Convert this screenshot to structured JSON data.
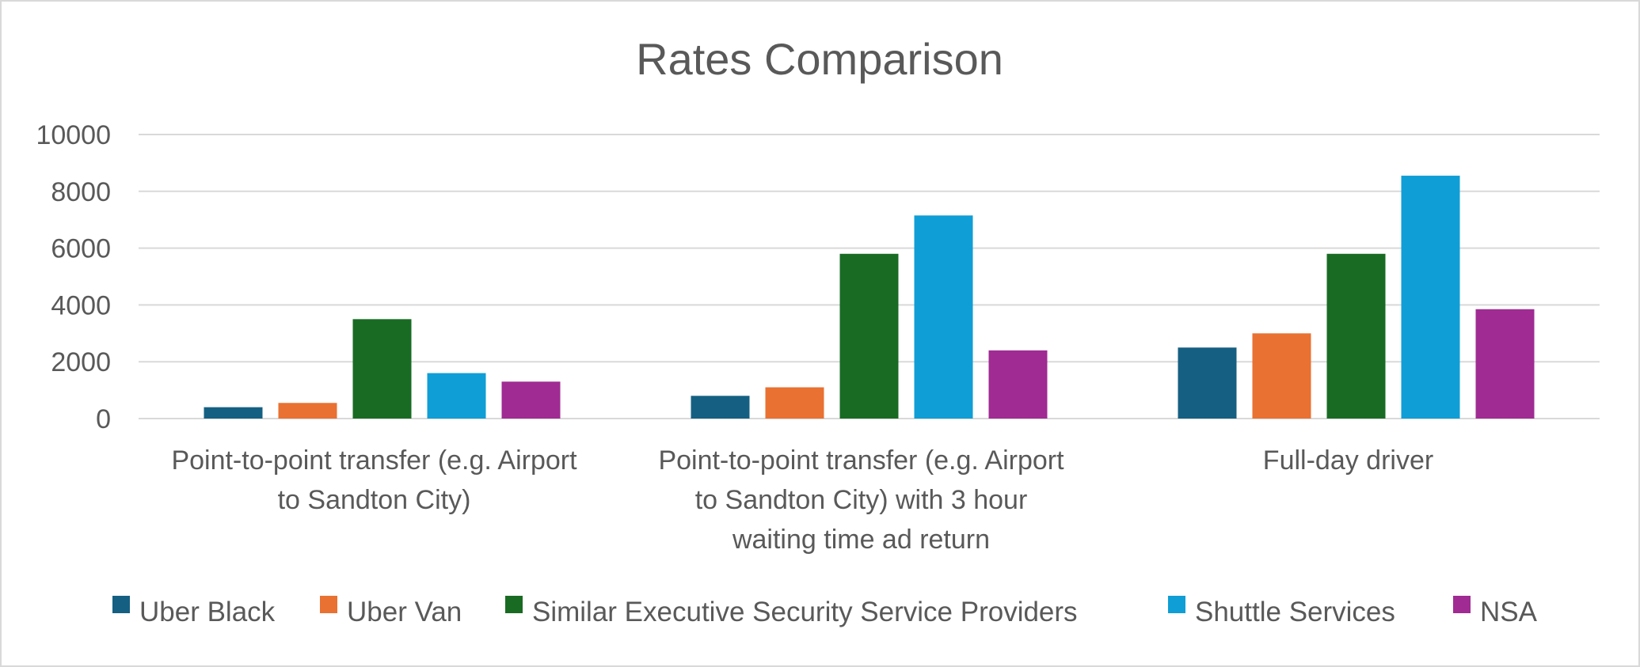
{
  "chart_data": {
    "type": "bar",
    "title": "Rates Comparison",
    "xlabel": "",
    "ylabel": "",
    "ylim": [
      0,
      10000
    ],
    "yticks": [
      0,
      2000,
      4000,
      6000,
      8000,
      10000
    ],
    "grid": true,
    "legend_position": "bottom",
    "categories": [
      [
        "Point-to-point transfer (e.g. Airport",
        "to Sandton City)"
      ],
      [
        "Point-to-point transfer (e.g. Airport",
        "to Sandton City) with 3 hour",
        "waiting time ad return"
      ],
      [
        "Full-day driver"
      ]
    ],
    "series": [
      {
        "name": "Uber Black",
        "color": "#156082",
        "values": [
          400,
          800,
          2500
        ]
      },
      {
        "name": "Uber Van",
        "color": "#E97132",
        "values": [
          550,
          1100,
          3000
        ]
      },
      {
        "name": "Similar Executive Security Service Providers",
        "color": "#196B24",
        "values": [
          3500,
          5800,
          5800
        ]
      },
      {
        "name": "Shuttle Services",
        "color": "#0F9ED5",
        "values": [
          1600,
          7150,
          8550
        ]
      },
      {
        "name": "NSA",
        "color": "#A02B93",
        "values": [
          1300,
          2400,
          3850
        ]
      }
    ]
  }
}
